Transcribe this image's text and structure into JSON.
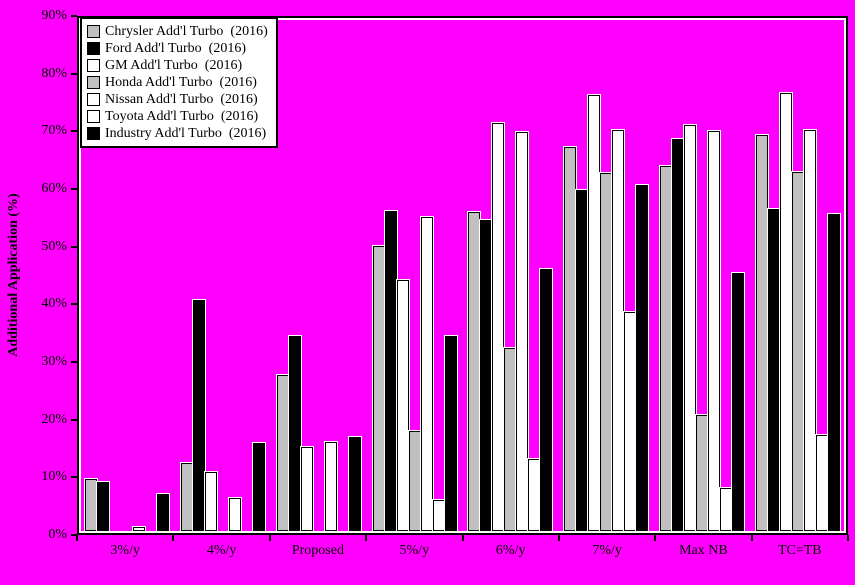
{
  "chart_data": {
    "type": "bar",
    "title": "",
    "xlabel": "",
    "ylabel": "Additional Application (%)",
    "ylim": [
      0,
      90
    ],
    "ytick_step": 10,
    "ytick_labels": [
      "0%",
      "10%",
      "20%",
      "30%",
      "40%",
      "50%",
      "60%",
      "70%",
      "80%",
      "90%"
    ],
    "grid": false,
    "legend_position": "top-left",
    "background_color": "#ff00ff",
    "categories": [
      "3%/y",
      "4%/y",
      "Proposed",
      "5%/y",
      "6%/y",
      "7%/y",
      "Max NB",
      "TC=TB"
    ],
    "series": [
      {
        "name": "Chrysler Add'l Turbo  (2016)",
        "color": "#c0c0c0",
        "values": [
          9.1,
          11.9,
          27.3,
          50.0,
          56.0,
          67.3,
          64.1,
          69.4
        ]
      },
      {
        "name": "Ford Add'l Turbo  (2016)",
        "color": "#000000",
        "values": [
          8.6,
          40.5,
          34.3,
          56.1,
          54.5,
          59.9,
          68.8,
          56.5
        ]
      },
      {
        "name": "GM Add'l Turbo  (2016)",
        "color": "#ffffff",
        "values": [
          0,
          10.3,
          14.8,
          44.0,
          71.5,
          76.5,
          71.2,
          76.9
        ]
      },
      {
        "name": "Honda Add'l Turbo  (2016)",
        "color": "#c0c0c0",
        "values": [
          0,
          0,
          0,
          17.6,
          32.1,
          62.9,
          20.3,
          63.0
        ]
      },
      {
        "name": "Nissan Add'l Turbo  (2016)",
        "color": "#ffffff",
        "values": [
          0.7,
          5.8,
          15.7,
          55.1,
          70.0,
          70.3,
          70.2,
          70.3
        ]
      },
      {
        "name": "Toyota Add'l Turbo  (2016)",
        "color": "#ffffff",
        "values": [
          0,
          0,
          0,
          5.4,
          12.6,
          38.4,
          7.5,
          16.9
        ]
      },
      {
        "name": "Industry Add'l Turbo  (2016)",
        "color": "#000000",
        "values": [
          6.5,
          15.4,
          16.5,
          34.3,
          46.0,
          60.7,
          45.3,
          55.7
        ]
      }
    ]
  },
  "colors": {
    "background": "#ff00ff",
    "bar_outline": "#000000",
    "bar_halo": "#ffffff",
    "axis": "#000000",
    "legend_bg": "#ffffff"
  }
}
